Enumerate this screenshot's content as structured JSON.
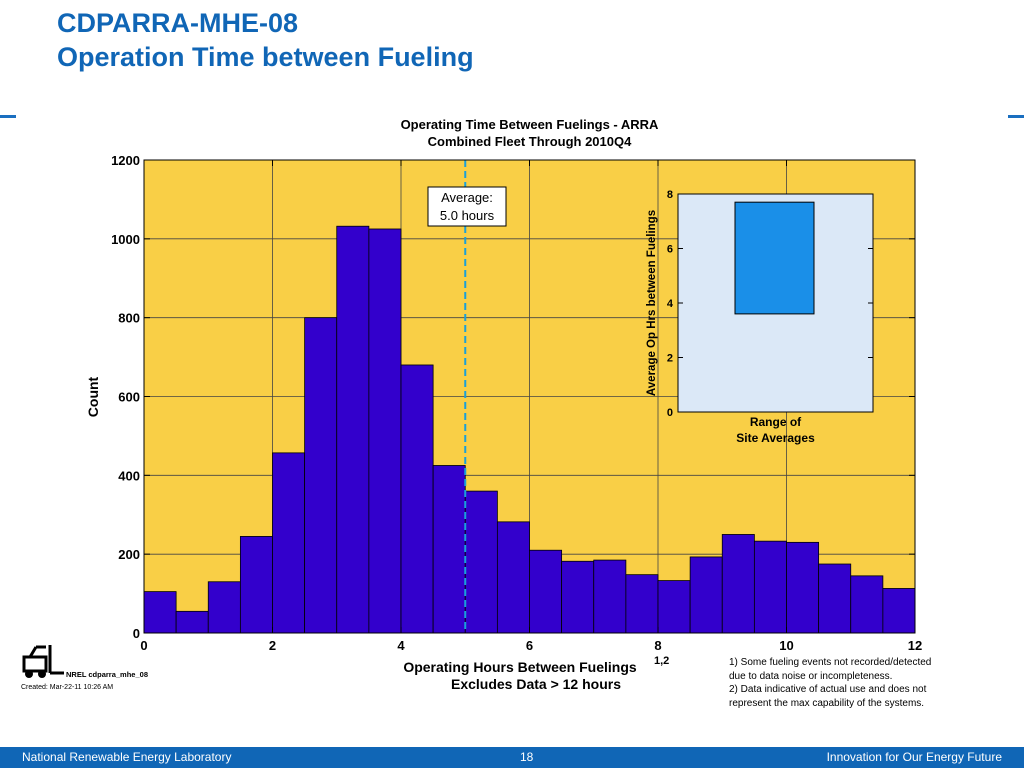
{
  "slide": {
    "title_line1": "CDPARRA-MHE-08",
    "title_line2": "Operation Time between Fueling"
  },
  "chart_data": {
    "type": "bar",
    "title": "Operating Time Between Fuelings - ARRA",
    "subtitle": "Combined Fleet Through 2010Q4",
    "xlabel": "Operating Hours Between Fuelings",
    "xlabel_superscript": "1,2",
    "xlabel_note": "Excludes Data > 12 hours",
    "ylabel": "Count",
    "xlim": [
      0,
      12
    ],
    "ylim": [
      0,
      1200
    ],
    "xticks": [
      0,
      2,
      4,
      6,
      8,
      10,
      12
    ],
    "yticks": [
      0,
      200,
      400,
      600,
      800,
      1000,
      1200
    ],
    "grid": true,
    "bin_width": 0.5,
    "bin_starts": [
      0,
      0.5,
      1,
      1.5,
      2,
      2.5,
      3,
      3.5,
      4,
      4.5,
      5,
      5.5,
      6,
      6.5,
      7,
      7.5,
      8,
      8.5,
      9,
      9.5,
      10,
      10.5,
      11,
      11.5
    ],
    "values": [
      105,
      55,
      130,
      245,
      457,
      800,
      1032,
      1025,
      680,
      425,
      360,
      282,
      210,
      182,
      185,
      148,
      133,
      193,
      250,
      233,
      230,
      175,
      145,
      113
    ],
    "bar_color": "#3300cc",
    "plot_bg": "#f9cf46",
    "average": {
      "x": 5.0,
      "label_line1": "Average:",
      "label_line2": "5.0 hours",
      "color": "#1aa0d8"
    },
    "inset": {
      "type": "range-bar",
      "ylabel": "Average Op Hrs between Fuelings",
      "xlabel_line1": "Range of",
      "xlabel_line2": "Site Averages",
      "ylim": [
        0,
        8
      ],
      "yticks": [
        0,
        2,
        4,
        6,
        8
      ],
      "range": [
        3.6,
        7.7
      ],
      "bar_color": "#1a8fe8",
      "bg": "#dbe8f7"
    }
  },
  "footnotes": {
    "line1": "1) Some fueling events not recorded/detected",
    "line2": "due to data noise or incompleteness.",
    "line3": "2) Data indicative of actual use and does not",
    "line4": "represent the max capability of the systems."
  },
  "logo": {
    "icon": "forklift-icon",
    "text": "NREL cdparra_mhe_08"
  },
  "created": "Created: Mar-22-11 10:26 AM",
  "footer": {
    "left": "National Renewable Energy Laboratory",
    "page": "18",
    "right": "Innovation for Our Energy Future",
    "color": "#1066b6"
  }
}
